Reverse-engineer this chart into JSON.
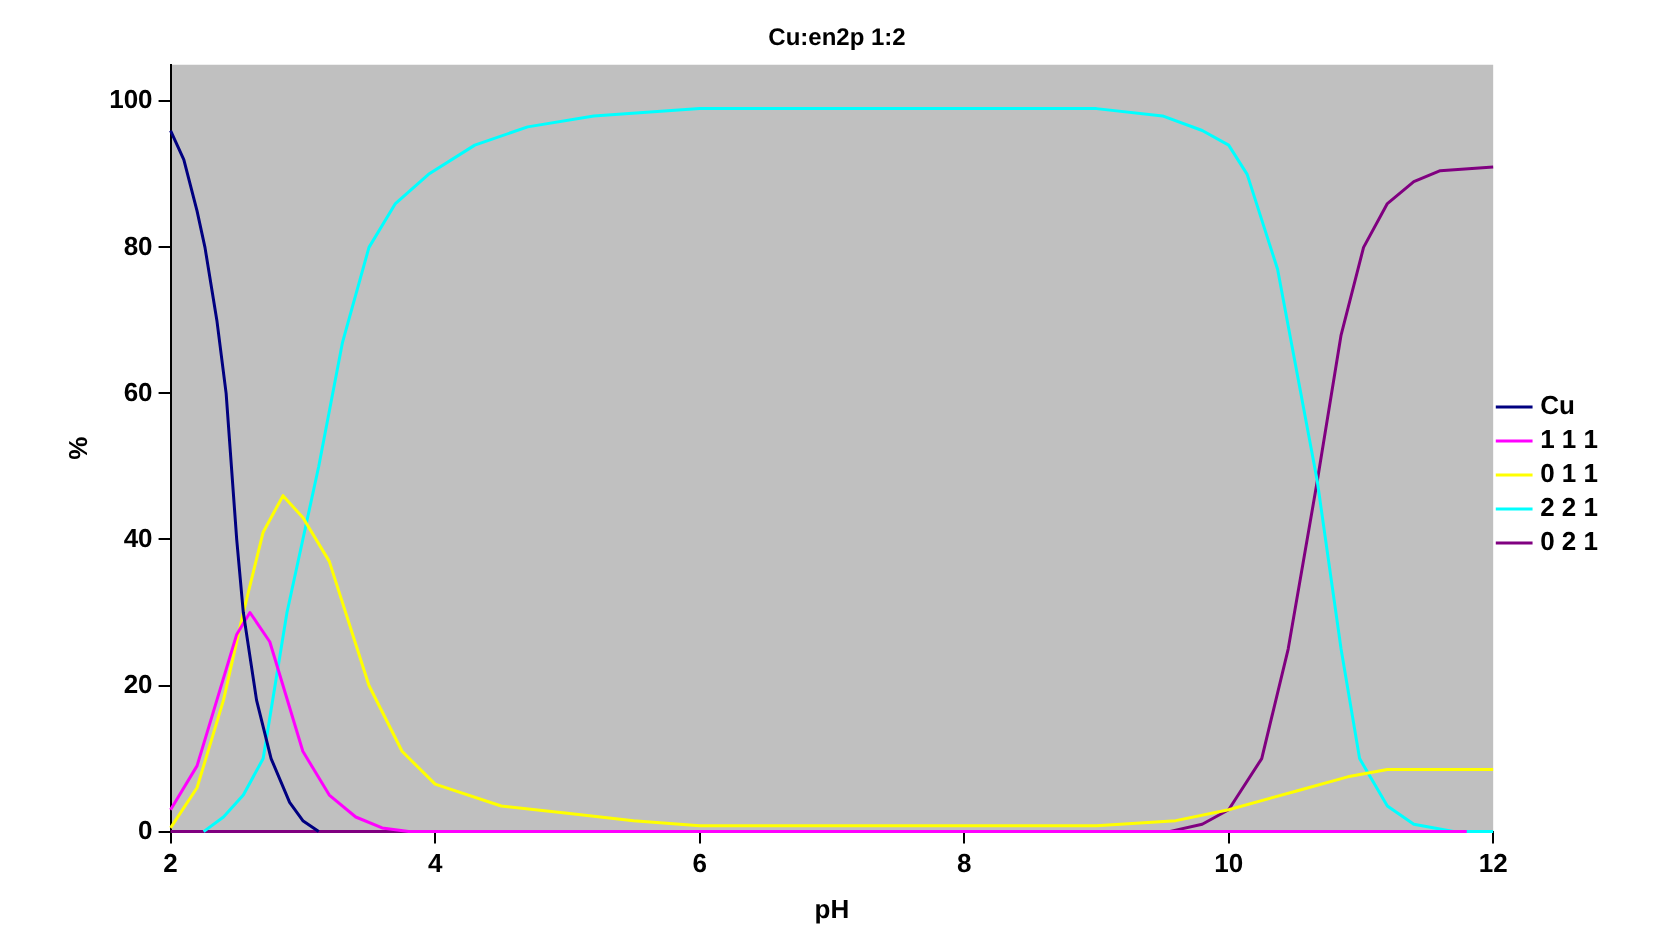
{
  "chart_data": {
    "type": "line",
    "title": "Cu:en2p 1:2",
    "xlabel": "pH",
    "ylabel": "%",
    "xlim": [
      2,
      12
    ],
    "xticks": [
      2,
      4,
      6,
      8,
      10,
      12
    ],
    "ylim": [
      0,
      105
    ],
    "yticks": [
      0,
      20,
      40,
      60,
      80,
      100
    ],
    "grid": false,
    "legend": "right",
    "marker": "none",
    "line_style": "solid",
    "series": [
      {
        "name": "Cu",
        "color": "#000080",
        "x": [
          2,
          2.1,
          2.2,
          2.26,
          2.35,
          2.42,
          2.5,
          2.55,
          2.65,
          2.76,
          2.9,
          3.0,
          3.12
        ],
        "values": [
          96,
          92,
          85,
          80,
          70,
          60,
          40,
          30,
          18,
          10,
          4,
          1.5,
          0
        ]
      },
      {
        "name": "1 1 1",
        "color": "#ff00ff",
        "x": [
          2,
          2.2,
          2.35,
          2.5,
          2.6,
          2.75,
          2.85,
          3.0,
          3.2,
          3.4,
          3.6,
          3.8,
          11.8
        ],
        "values": [
          3,
          9,
          18,
          27,
          30,
          26,
          20,
          11,
          5,
          2,
          0.5,
          0,
          0
        ]
      },
      {
        "name": "0 1 1",
        "color": "#ffff00",
        "x": [
          2,
          2.2,
          2.4,
          2.55,
          2.7,
          2.85,
          3.0,
          3.2,
          3.5,
          3.75,
          4,
          4.5,
          5,
          5.5,
          6,
          9,
          9.6,
          10,
          10.5,
          10.9,
          11.2,
          12
        ],
        "values": [
          0.5,
          6,
          18,
          30,
          41,
          46,
          43,
          37,
          20,
          11,
          6.5,
          3.5,
          2.5,
          1.5,
          0.8,
          0.8,
          1.5,
          3,
          5.5,
          7.5,
          8.5,
          8.5
        ]
      },
      {
        "name": "2 2 1",
        "color": "#00ffff",
        "x": [
          2.25,
          2.4,
          2.55,
          2.7,
          2.88,
          3.0,
          3.12,
          3.3,
          3.5,
          3.7,
          3.95,
          4.3,
          4.7,
          5.2,
          6,
          9,
          9.5,
          9.8,
          10,
          10.14,
          10.37,
          10.67,
          10.85,
          10.99,
          11.2,
          11.4,
          11.7,
          12
        ],
        "values": [
          0,
          2,
          5,
          10,
          30,
          40,
          50,
          67,
          80,
          86,
          90,
          94,
          96.5,
          98,
          99,
          99,
          98,
          96,
          94,
          90,
          77,
          48,
          25,
          10,
          3.5,
          1,
          0,
          0
        ]
      },
      {
        "name": "0 2 1",
        "color": "#800080",
        "x": [
          2,
          9.55,
          9.8,
          10,
          10.25,
          10.45,
          10.67,
          10.85,
          11.02,
          11.2,
          11.4,
          11.6,
          12
        ],
        "values": [
          0,
          0,
          1,
          3,
          10,
          25,
          48,
          68,
          80,
          86,
          89,
          90.5,
          91
        ]
      }
    ]
  }
}
